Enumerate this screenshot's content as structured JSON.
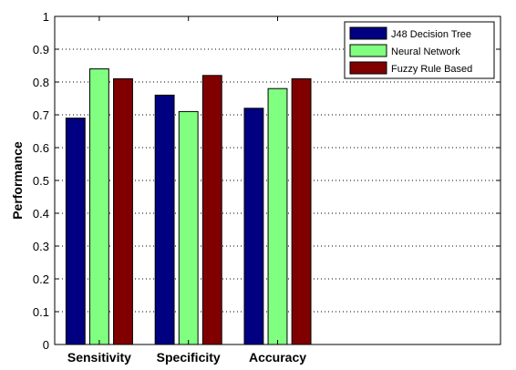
{
  "chart_data": {
    "type": "bar",
    "categories": [
      "Sensitivity",
      "Specificity",
      "Accuracy"
    ],
    "series": [
      {
        "name": "J48 Decision Tree",
        "values": [
          0.69,
          0.76,
          0.72
        ],
        "color": "#000080"
      },
      {
        "name": "Neural Network",
        "values": [
          0.84,
          0.71,
          0.78
        ],
        "color": "#80ff80"
      },
      {
        "name": "Fuzzy Rule Based",
        "values": [
          0.81,
          0.82,
          0.81
        ],
        "color": "#800000"
      }
    ],
    "title": "",
    "xlabel": "",
    "ylabel": "Performance",
    "ylim": [
      0,
      1
    ],
    "yticks": [
      "0",
      "0.1",
      "0.2",
      "0.3",
      "0.4",
      "0.5",
      "0.6",
      "0.7",
      "0.8",
      "0.9",
      "1"
    ],
    "xlim": [
      0.5,
      5.5
    ],
    "grid": "y-dotted",
    "legend_position": "top-right"
  }
}
